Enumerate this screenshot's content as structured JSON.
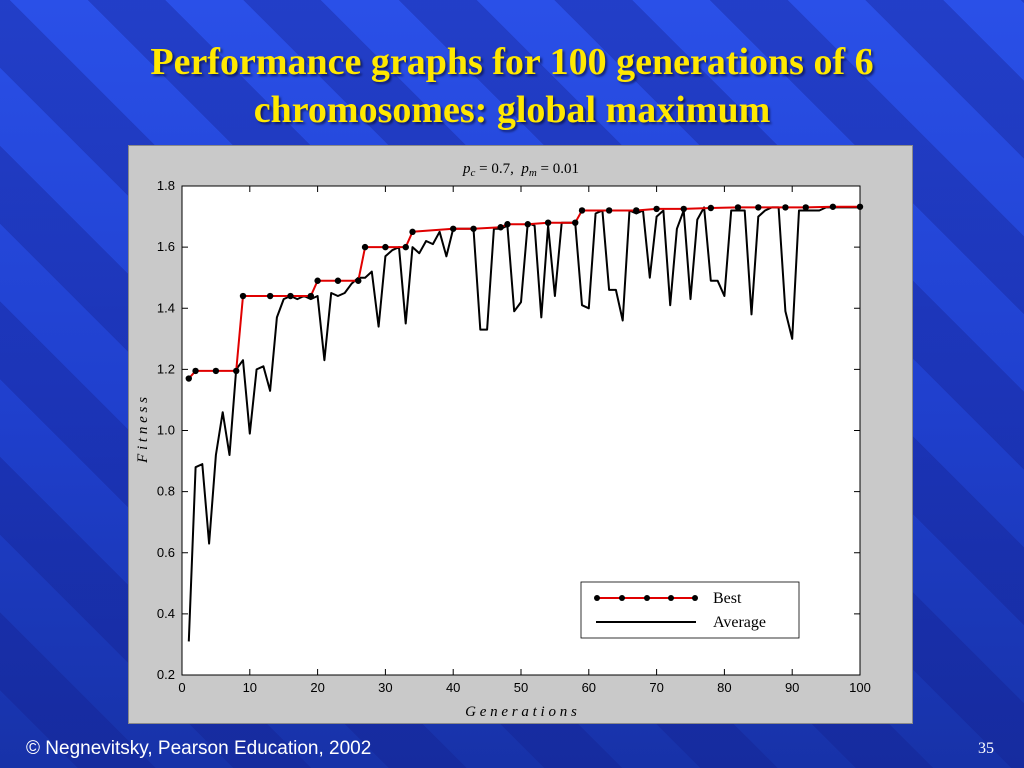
{
  "slide": {
    "title_line1": "Performance graphs for 100 generations of 6",
    "title_line2": "chromosomes: global maximum",
    "footer": "© Negnevitsky, Pearson Education, 2002",
    "page_number": "35",
    "colors": {
      "title": "#ffe800",
      "background": "#1f3fcc",
      "best": "#e00000",
      "average": "#000000"
    }
  },
  "chart_data": {
    "type": "line",
    "subtitle_parts": {
      "pc_label": "p",
      "pc_sub": "c",
      "pc_value": " = 0.7,  ",
      "pm_label": "p",
      "pm_sub": "m",
      "pm_value": " = 0.01"
    },
    "xlabel": "G e n e r a t i o n s",
    "ylabel": "F i t n e s s",
    "xlim": [
      0,
      100
    ],
    "ylim": [
      0.2,
      1.8
    ],
    "xticks": [
      0,
      10,
      20,
      30,
      40,
      50,
      60,
      70,
      80,
      90,
      100
    ],
    "yticks": [
      0.2,
      0.4,
      0.6,
      0.8,
      1.0,
      1.2,
      1.4,
      1.6,
      1.8
    ],
    "ytick_labels": [
      "0.2",
      "0.4",
      "0.6",
      "0.8",
      "1.0",
      "1.2",
      "1.4",
      "1.6",
      "1.8"
    ],
    "legend": {
      "placement": "bottom-right",
      "best_label": "Best",
      "average_label": "Average"
    },
    "series": [
      {
        "name": "Best",
        "x": [
          1,
          2,
          5,
          8,
          9,
          13,
          16,
          19,
          20,
          23,
          26,
          27,
          30,
          33,
          34,
          40,
          43,
          47,
          48,
          51,
          54,
          58,
          59,
          63,
          67,
          70,
          74,
          78,
          82,
          85,
          89,
          92,
          96,
          100
        ],
        "y": [
          1.17,
          1.195,
          1.195,
          1.195,
          1.44,
          1.44,
          1.44,
          1.44,
          1.49,
          1.49,
          1.49,
          1.6,
          1.6,
          1.6,
          1.65,
          1.66,
          1.66,
          1.665,
          1.675,
          1.675,
          1.68,
          1.68,
          1.72,
          1.72,
          1.72,
          1.725,
          1.725,
          1.728,
          1.73,
          1.73,
          1.73,
          1.73,
          1.732,
          1.732
        ],
        "markers": [
          1,
          2,
          5,
          8,
          9,
          13,
          16,
          19,
          20,
          23,
          26,
          27,
          30,
          33,
          34,
          40,
          43,
          47,
          48,
          51,
          54,
          58,
          59,
          63,
          67,
          70,
          74,
          78,
          82,
          85,
          89,
          92,
          96,
          100
        ]
      },
      {
        "name": "Average",
        "x": [
          1,
          2,
          3,
          4,
          5,
          6,
          7,
          8,
          9,
          10,
          11,
          12,
          13,
          14,
          15,
          16,
          17,
          18,
          19,
          20,
          21,
          22,
          23,
          24,
          25,
          26,
          27,
          28,
          29,
          30,
          31,
          32,
          33,
          34,
          35,
          36,
          37,
          38,
          39,
          40,
          41,
          42,
          43,
          44,
          45,
          46,
          47,
          48,
          49,
          50,
          51,
          52,
          53,
          54,
          55,
          56,
          57,
          58,
          59,
          60,
          61,
          62,
          63,
          64,
          65,
          66,
          67,
          68,
          69,
          70,
          71,
          72,
          73,
          74,
          75,
          76,
          77,
          78,
          79,
          80,
          81,
          82,
          83,
          84,
          85,
          86,
          87,
          88,
          89,
          90,
          91,
          92,
          93,
          94,
          95,
          96,
          97,
          98,
          99,
          100
        ],
        "y": [
          0.31,
          0.88,
          0.89,
          0.63,
          0.92,
          1.06,
          0.92,
          1.2,
          1.23,
          0.99,
          1.2,
          1.21,
          1.13,
          1.37,
          1.43,
          1.44,
          1.43,
          1.44,
          1.43,
          1.44,
          1.23,
          1.45,
          1.44,
          1.45,
          1.48,
          1.5,
          1.5,
          1.52,
          1.34,
          1.57,
          1.59,
          1.6,
          1.35,
          1.6,
          1.58,
          1.62,
          1.61,
          1.65,
          1.57,
          1.66,
          1.66,
          1.66,
          1.66,
          1.33,
          1.33,
          1.66,
          1.66,
          1.67,
          1.39,
          1.42,
          1.68,
          1.67,
          1.37,
          1.67,
          1.44,
          1.68,
          1.68,
          1.68,
          1.41,
          1.4,
          1.71,
          1.72,
          1.46,
          1.46,
          1.36,
          1.72,
          1.71,
          1.72,
          1.5,
          1.7,
          1.72,
          1.41,
          1.66,
          1.72,
          1.43,
          1.69,
          1.73,
          1.49,
          1.49,
          1.44,
          1.72,
          1.72,
          1.72,
          1.38,
          1.7,
          1.72,
          1.73,
          1.73,
          1.39,
          1.3,
          1.72,
          1.72,
          1.72,
          1.72,
          1.73,
          1.73,
          1.73,
          1.73,
          1.73,
          1.73
        ]
      }
    ]
  }
}
